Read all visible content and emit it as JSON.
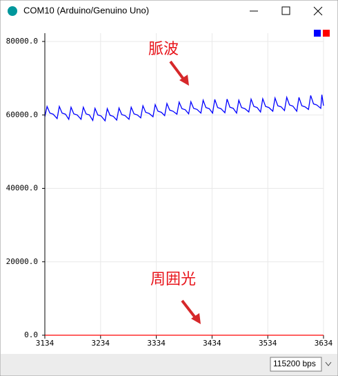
{
  "window": {
    "title": "COM10 (Arduino/Genuino Uno)",
    "baud": "115200 bps"
  },
  "chart_data": {
    "type": "line",
    "x": [
      3134,
      3138,
      3143,
      3149,
      3156,
      3160,
      3165,
      3171,
      3177,
      3181,
      3186,
      3192,
      3199,
      3203,
      3208,
      3214,
      3220,
      3224,
      3229,
      3235,
      3242,
      3246,
      3251,
      3257,
      3263,
      3267,
      3272,
      3278,
      3285,
      3289,
      3294,
      3300,
      3306,
      3310,
      3315,
      3321,
      3328,
      3332,
      3337,
      3343,
      3349,
      3353,
      3358,
      3364,
      3371,
      3375,
      3380,
      3386,
      3392,
      3396,
      3401,
      3407,
      3414,
      3418,
      3423,
      3429,
      3435,
      3439,
      3444,
      3450,
      3457,
      3461,
      3466,
      3472,
      3478,
      3482,
      3487,
      3493,
      3500,
      3504,
      3509,
      3515,
      3521,
      3525,
      3530,
      3536,
      3543,
      3547,
      3552,
      3558,
      3564,
      3568,
      3573,
      3579,
      3586,
      3590,
      3595,
      3601,
      3607,
      3611,
      3616,
      3622,
      3629,
      3631,
      3634
    ],
    "series": [
      {
        "color": "#0000ff",
        "values": [
          59500,
          62300,
          60500,
          60200,
          59000,
          62300,
          60500,
          60200,
          58800,
          62100,
          60300,
          60000,
          58800,
          62100,
          60300,
          60000,
          58500,
          61800,
          60000,
          59700,
          58400,
          61700,
          59900,
          59600,
          58600,
          61900,
          60100,
          59800,
          58800,
          62100,
          60300,
          60000,
          59200,
          62500,
          60700,
          60400,
          59500,
          62800,
          61000,
          60700,
          59800,
          63100,
          61300,
          61000,
          60200,
          63500,
          61700,
          61400,
          60300,
          63600,
          61800,
          61500,
          60500,
          64000,
          62000,
          61700,
          60500,
          64200,
          62000,
          61700,
          60600,
          64300,
          62100,
          61800,
          60500,
          64000,
          62000,
          61700,
          60800,
          64300,
          62300,
          62000,
          60800,
          64400,
          62300,
          62000,
          61000,
          64600,
          62500,
          62200,
          61200,
          64800,
          62700,
          62400,
          61000,
          64800,
          62500,
          62200,
          61500,
          65300,
          63000,
          62700,
          61800,
          65500,
          62500
        ]
      },
      {
        "color": "#ff0000",
        "values": [
          0,
          0,
          0,
          0,
          0,
          0,
          0,
          0,
          0,
          0,
          0,
          0,
          0,
          0,
          0,
          0,
          0,
          0,
          0,
          0,
          0,
          0,
          0,
          0,
          0,
          0,
          0,
          0,
          0,
          0,
          0,
          0,
          0,
          0,
          0,
          0,
          0,
          0,
          0,
          0,
          0,
          0,
          0,
          0,
          0,
          0,
          0,
          0,
          0,
          0,
          0,
          0,
          0,
          0,
          0,
          0,
          0,
          0,
          0,
          0,
          0,
          0,
          0,
          0,
          0,
          0,
          0,
          0,
          0,
          0,
          0,
          0,
          0,
          0,
          0,
          0,
          0,
          0,
          0,
          0,
          0,
          0,
          0,
          0,
          0,
          0,
          0,
          0,
          0,
          0,
          0,
          0,
          0,
          0,
          0
        ]
      }
    ],
    "xlim": [
      3134,
      3634
    ],
    "xticks": [
      3134,
      3234,
      3334,
      3434,
      3534,
      3634
    ],
    "ylim": [
      0,
      80000
    ],
    "yticks": [
      {
        "value": 0,
        "label": "0.0"
      },
      {
        "value": 20000,
        "label": "20000.0"
      },
      {
        "value": 40000,
        "label": "40000.0"
      },
      {
        "value": 60000,
        "label": "60000.0"
      },
      {
        "value": 80000,
        "label": "80000.0"
      }
    ],
    "grid": true,
    "annotations": [
      "脈波",
      "周囲光"
    ]
  }
}
